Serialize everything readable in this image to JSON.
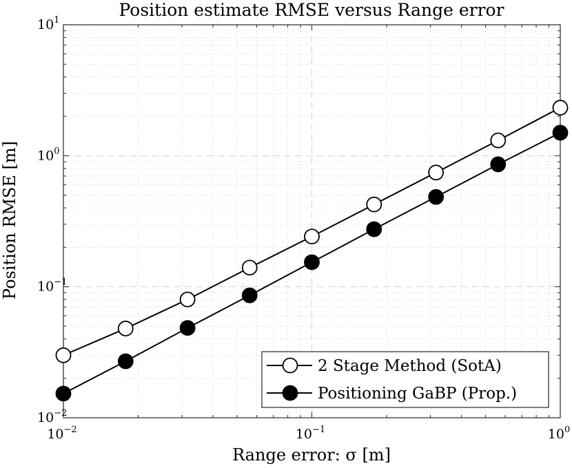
{
  "chart_data": {
    "type": "line",
    "title": "Position estimate RMSE versus Range error",
    "xlabel": "Range error: σ [m]",
    "ylabel": "Position RMSE [m]",
    "x_scale": "log",
    "y_scale": "log",
    "xlim": [
      0.01,
      1
    ],
    "ylim": [
      0.01,
      10
    ],
    "x_ticks": [
      {
        "value": 0.01,
        "base": "10",
        "exp": "−2"
      },
      {
        "value": 0.1,
        "base": "10",
        "exp": "−1"
      },
      {
        "value": 1,
        "base": "10",
        "exp": "0"
      }
    ],
    "y_ticks": [
      {
        "value": 0.01,
        "base": "10",
        "exp": "−2"
      },
      {
        "value": 0.1,
        "base": "10",
        "exp": "−1"
      },
      {
        "value": 1,
        "base": "10",
        "exp": "0"
      },
      {
        "value": 10,
        "base": "10",
        "exp": "1"
      }
    ],
    "grid": true,
    "legend_position": "bottom-right",
    "x": [
      0.01,
      0.0178,
      0.0316,
      0.0562,
      0.1,
      0.178,
      0.316,
      0.562,
      1.0
    ],
    "series": [
      {
        "name": "2 Stage Method (SotA)",
        "marker": "open-circle",
        "color": "#000000",
        "values": [
          0.03,
          0.048,
          0.08,
          0.14,
          0.242,
          0.425,
          0.745,
          1.31,
          2.33
        ]
      },
      {
        "name": "Positioning GaBP (Prop.)",
        "marker": "filled-circle",
        "color": "#000000",
        "values": [
          0.0153,
          0.027,
          0.0485,
          0.086,
          0.154,
          0.275,
          0.485,
          0.86,
          1.5
        ]
      }
    ]
  }
}
